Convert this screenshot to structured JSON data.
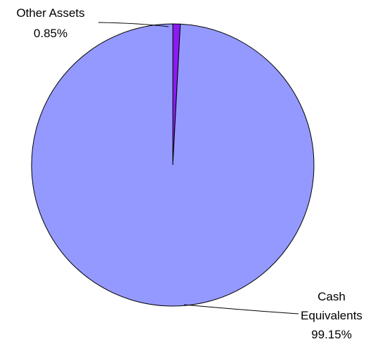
{
  "chart_data": {
    "type": "pie",
    "title": "",
    "slices": [
      {
        "label": "Other Assets",
        "value": 0.85,
        "value_label": "0.85%",
        "color": "#8a1cf0"
      },
      {
        "label": "Cash Equivalents",
        "value": 99.15,
        "value_label": "99.15%",
        "color": "#9499ff"
      }
    ],
    "legend": "none"
  }
}
